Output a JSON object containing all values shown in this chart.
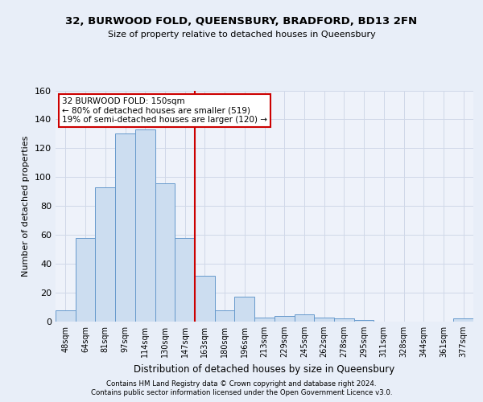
{
  "title1": "32, BURWOOD FOLD, QUEENSBURY, BRADFORD, BD13 2FN",
  "title2": "Size of property relative to detached houses in Queensbury",
  "xlabel": "Distribution of detached houses by size in Queensbury",
  "ylabel": "Number of detached properties",
  "categories": [
    "48sqm",
    "64sqm",
    "81sqm",
    "97sqm",
    "114sqm",
    "130sqm",
    "147sqm",
    "163sqm",
    "180sqm",
    "196sqm",
    "213sqm",
    "229sqm",
    "245sqm",
    "262sqm",
    "278sqm",
    "295sqm",
    "311sqm",
    "328sqm",
    "344sqm",
    "361sqm",
    "377sqm"
  ],
  "values": [
    8,
    58,
    93,
    130,
    133,
    96,
    58,
    32,
    8,
    17,
    3,
    4,
    5,
    3,
    2,
    1,
    0,
    0,
    0,
    0,
    2
  ],
  "bar_color": "#ccddf0",
  "bar_edge_color": "#6699cc",
  "grid_color": "#d0d8e8",
  "annotation_box_color": "#cc0000",
  "vline_color": "#cc0000",
  "vline_position": 6.5,
  "annotation_text": "32 BURWOOD FOLD: 150sqm\n← 80% of detached houses are smaller (519)\n19% of semi-detached houses are larger (120) →",
  "footer1": "Contains HM Land Registry data © Crown copyright and database right 2024.",
  "footer2": "Contains public sector information licensed under the Open Government Licence v3.0.",
  "ylim": [
    0,
    160
  ],
  "yticks": [
    0,
    20,
    40,
    60,
    80,
    100,
    120,
    140,
    160
  ],
  "bg_color": "#e8eef8",
  "plot_bg_color": "#eef2fa"
}
